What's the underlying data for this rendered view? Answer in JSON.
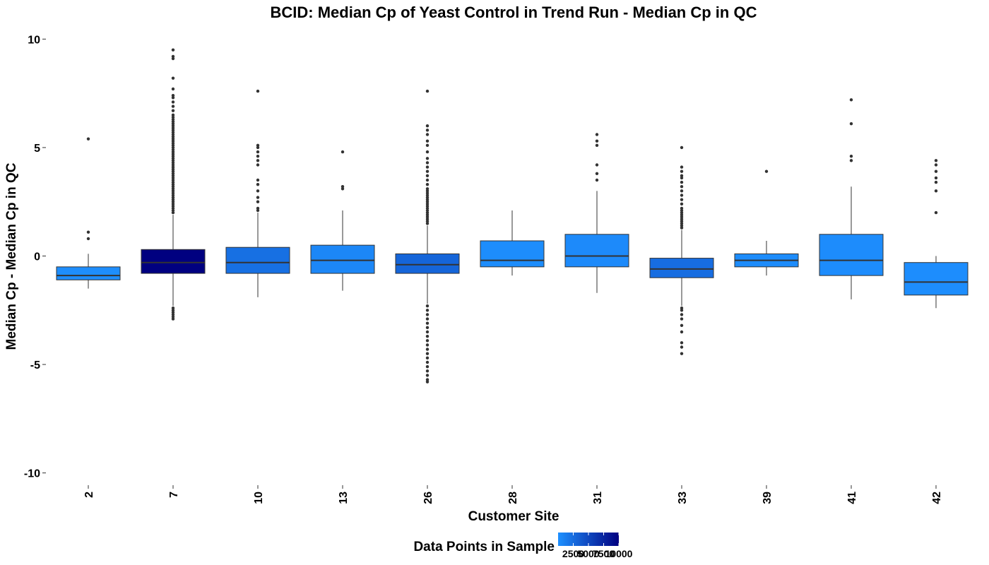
{
  "chart_data": {
    "type": "box",
    "title": "BCID: Median Cp of Yeast Control in Trend Run - Median Cp in QC",
    "xlabel": "Customer Site",
    "ylabel": "Median Cp - Median Cp in QC",
    "ylim": [
      -10.5,
      10.5
    ],
    "yticks": [
      -10,
      -5,
      0,
      5,
      10
    ],
    "ytick_labels": [
      "-10",
      "-5",
      "0",
      "5",
      "10"
    ],
    "grid": false,
    "legend": {
      "title": "Data Points in Sample",
      "placement": "bottom",
      "ticks": [
        2500,
        5000,
        7500,
        10000
      ],
      "tick_labels": [
        "2500",
        "5000",
        "7500",
        "10000"
      ],
      "range": [
        1,
        10000
      ],
      "color_low": "#1E90FF",
      "color_high": "#000080"
    },
    "color_low": "#1E90FF",
    "color_high": "#000080",
    "boxes": [
      {
        "site": "2",
        "q1": -1.1,
        "median": -0.9,
        "q3": -0.5,
        "whisker_low": -1.5,
        "whisker_high": 0.1,
        "n": 150,
        "outliers": [
          0.8,
          1.1,
          5.4
        ]
      },
      {
        "site": "7",
        "q1": -0.8,
        "median": -0.3,
        "q3": 0.3,
        "whisker_low": -2.3,
        "whisker_high": 1.9,
        "n": 10000,
        "outliers": [
          -2.9,
          -2.8,
          -2.7,
          -2.6,
          -2.5,
          -2.4,
          2.0,
          2.1,
          2.2,
          2.3,
          2.4,
          2.5,
          2.6,
          2.7,
          2.8,
          2.9,
          3.0,
          3.1,
          3.2,
          3.3,
          3.4,
          3.5,
          3.6,
          3.7,
          3.8,
          3.9,
          4.0,
          4.1,
          4.2,
          4.3,
          4.4,
          4.5,
          4.6,
          4.7,
          4.8,
          4.9,
          5.0,
          5.1,
          5.2,
          5.3,
          5.4,
          5.5,
          5.6,
          5.7,
          5.8,
          5.9,
          6.0,
          6.1,
          6.2,
          6.3,
          6.4,
          6.5,
          6.7,
          6.9,
          7.1,
          7.3,
          7.4,
          7.7,
          8.2,
          9.1,
          9.2,
          9.5
        ]
      },
      {
        "site": "10",
        "q1": -0.8,
        "median": -0.3,
        "q3": 0.4,
        "whisker_low": -1.9,
        "whisker_high": 2.0,
        "n": 2200,
        "outliers": [
          2.1,
          2.2,
          2.5,
          2.7,
          3.0,
          3.3,
          3.5,
          4.2,
          4.4,
          4.6,
          4.8,
          5.0,
          5.1,
          7.6
        ]
      },
      {
        "site": "13",
        "q1": -0.8,
        "median": -0.2,
        "q3": 0.5,
        "whisker_low": -1.6,
        "whisker_high": 2.1,
        "n": 600,
        "outliers": [
          3.1,
          3.2,
          4.8
        ]
      },
      {
        "site": "26",
        "q1": -0.8,
        "median": -0.4,
        "q3": 0.1,
        "whisker_low": -2.2,
        "whisker_high": 1.4,
        "n": 3000,
        "outliers": [
          -5.8,
          -5.7,
          -5.5,
          -5.3,
          -5.1,
          -4.9,
          -4.7,
          -4.5,
          -4.3,
          -4.1,
          -3.9,
          -3.7,
          -3.5,
          -3.3,
          -3.1,
          -2.9,
          -2.7,
          -2.5,
          -2.3,
          1.5,
          1.6,
          1.7,
          1.8,
          1.9,
          2.0,
          2.1,
          2.2,
          2.3,
          2.4,
          2.5,
          2.6,
          2.7,
          2.8,
          2.9,
          3.0,
          3.1,
          3.3,
          3.5,
          3.7,
          3.9,
          4.1,
          4.3,
          4.5,
          4.8,
          5.1,
          5.3,
          5.6,
          5.8,
          6.0,
          7.6
        ]
      },
      {
        "site": "28",
        "q1": -0.5,
        "median": -0.2,
        "q3": 0.7,
        "whisker_low": -0.9,
        "whisker_high": 2.1,
        "n": 200,
        "outliers": []
      },
      {
        "site": "31",
        "q1": -0.5,
        "median": 0.0,
        "q3": 1.0,
        "whisker_low": -1.7,
        "whisker_high": 3.0,
        "n": 400,
        "outliers": [
          3.5,
          3.8,
          4.2,
          5.1,
          5.3,
          5.6
        ]
      },
      {
        "site": "33",
        "q1": -1.0,
        "median": -0.6,
        "q3": -0.1,
        "whisker_low": -2.3,
        "whisker_high": 1.2,
        "n": 2400,
        "outliers": [
          -4.5,
          -4.2,
          -4.0,
          -3.5,
          -3.2,
          -2.9,
          -2.7,
          -2.5,
          -2.4,
          1.3,
          1.4,
          1.5,
          1.6,
          1.7,
          1.8,
          1.9,
          2.0,
          2.1,
          2.2,
          2.4,
          2.6,
          2.8,
          3.0,
          3.2,
          3.4,
          3.6,
          3.7,
          3.9,
          4.1,
          5.0
        ]
      },
      {
        "site": "39",
        "q1": -0.5,
        "median": -0.2,
        "q3": 0.1,
        "whisker_low": -0.9,
        "whisker_high": 0.7,
        "n": 300,
        "outliers": [
          3.9
        ]
      },
      {
        "site": "41",
        "q1": -0.9,
        "median": -0.2,
        "q3": 1.0,
        "whisker_low": -2.0,
        "whisker_high": 3.2,
        "n": 250,
        "outliers": [
          4.4,
          4.6,
          6.1,
          7.2
        ]
      },
      {
        "site": "42",
        "q1": -1.8,
        "median": -1.2,
        "q3": -0.3,
        "whisker_low": -2.4,
        "whisker_high": 0.0,
        "n": 180,
        "outliers": [
          2.0,
          3.0,
          3.4,
          3.6,
          3.9,
          4.2,
          4.4
        ]
      }
    ]
  }
}
